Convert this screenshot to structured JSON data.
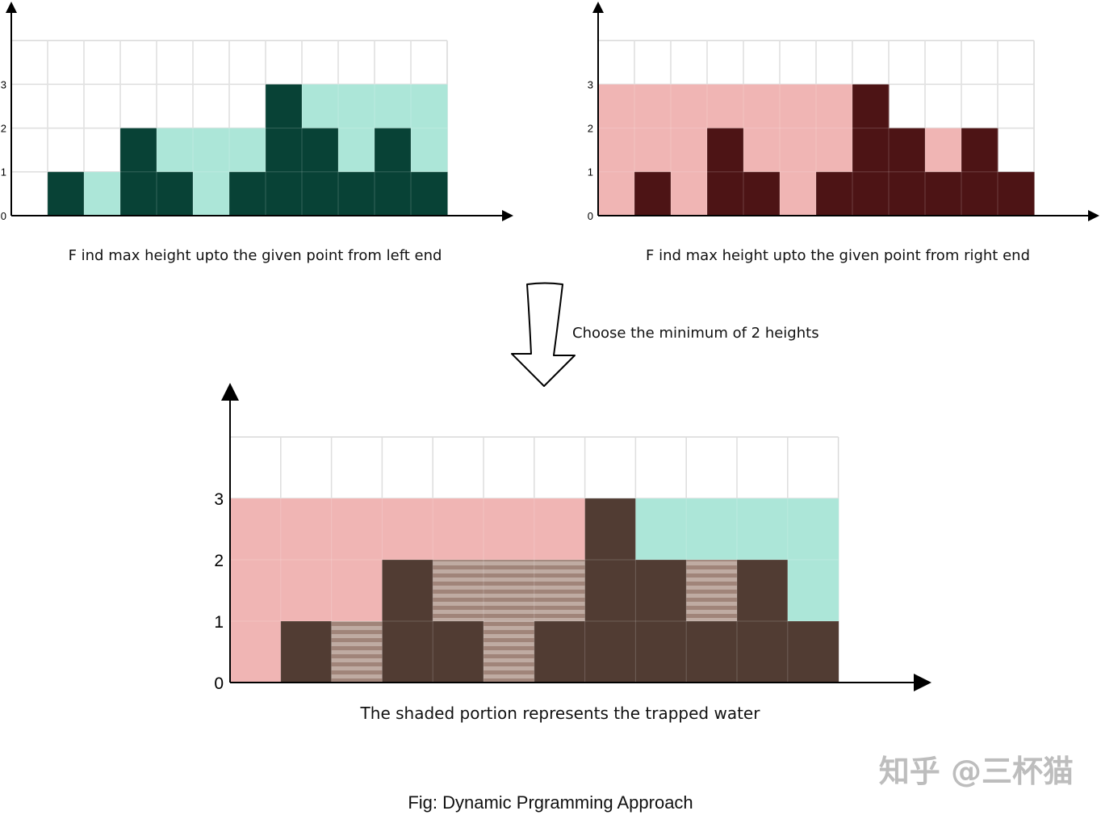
{
  "colors": {
    "bar_left": "#084236",
    "water_left": "#ace6d8",
    "bar_right": "#4d1415",
    "water_right": "#f0b5b4",
    "bar_bottom": "#513c33",
    "trapped_a": "#a08479",
    "trapped_b": "#bfaba2",
    "grid": "#d9d9d9",
    "axis": "#000000"
  },
  "icons": {
    "arrow": "hollow-down-arrow-icon"
  },
  "texts": {
    "left_caption": "F ind max height upto the given point from left end",
    "right_caption": "F ind max height upto the given point from right end",
    "arrow_caption": "Choose the minimum of 2 heights",
    "bottom_caption": "The shaded portion represents the trapped water",
    "figure_caption": "Fig: Dynamic Prgramming Approach",
    "watermark": "知乎 @三杯猫"
  },
  "chart_data": [
    {
      "id": "left",
      "type": "bar",
      "stacked": true,
      "y_ticks": [
        "0",
        "1",
        "2",
        "3"
      ],
      "ylim": [
        0,
        4
      ],
      "columns": 12,
      "heights": [
        0,
        1,
        0,
        2,
        1,
        0,
        1,
        3,
        2,
        1,
        2,
        1
      ],
      "left_max": [
        0,
        1,
        1,
        2,
        2,
        2,
        2,
        3,
        3,
        3,
        3,
        3
      ]
    },
    {
      "id": "right",
      "type": "bar",
      "stacked": true,
      "y_ticks": [
        "0",
        "1",
        "2",
        "3"
      ],
      "ylim": [
        0,
        4
      ],
      "columns": 12,
      "heights": [
        0,
        1,
        0,
        2,
        1,
        0,
        1,
        3,
        2,
        1,
        2,
        1
      ],
      "right_max": [
        3,
        3,
        3,
        3,
        3,
        3,
        3,
        3,
        2,
        2,
        2,
        1
      ]
    },
    {
      "id": "bottom",
      "type": "bar",
      "stacked": true,
      "y_ticks": [
        "0",
        "1",
        "2",
        "3"
      ],
      "ylim": [
        0,
        4
      ],
      "columns": 12,
      "heights": [
        0,
        1,
        0,
        2,
        1,
        0,
        1,
        3,
        2,
        1,
        2,
        1
      ],
      "left_max": [
        0,
        1,
        1,
        2,
        2,
        2,
        2,
        3,
        3,
        3,
        3,
        3
      ],
      "right_max": [
        3,
        3,
        3,
        3,
        3,
        3,
        3,
        3,
        2,
        2,
        2,
        1
      ],
      "trapped_water": [
        0,
        0,
        1,
        0,
        1,
        2,
        1,
        0,
        0,
        1,
        0,
        0
      ]
    }
  ]
}
